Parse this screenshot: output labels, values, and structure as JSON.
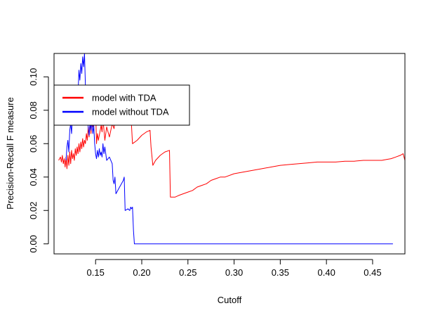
{
  "chart_data": {
    "type": "line",
    "title": "",
    "xlabel": "Cutoff",
    "ylabel": "Precision-Recall F measure",
    "xlim": [
      0.105,
      0.485
    ],
    "ylim": [
      -0.006,
      0.114
    ],
    "x_ticks": [
      0.15,
      0.2,
      0.25,
      0.3,
      0.35,
      0.4,
      0.45
    ],
    "x_tick_labels": [
      "0.15",
      "0.20",
      "0.25",
      "0.30",
      "0.35",
      "0.40",
      "0.45"
    ],
    "y_ticks": [
      0.0,
      0.02,
      0.04,
      0.06,
      0.08,
      0.1
    ],
    "y_tick_labels": [
      "0.00",
      "0.02",
      "0.04",
      "0.06",
      "0.08",
      "0.10"
    ],
    "grid": false,
    "legend": "top-left",
    "colors": {
      "model with TDA": "#ff0000",
      "model without TDA": "#0000ff"
    },
    "series": [
      {
        "name": "model with TDA",
        "color": "#ff0000",
        "x": [
          0.11,
          0.112,
          0.113,
          0.114,
          0.115,
          0.116,
          0.117,
          0.118,
          0.119,
          0.12,
          0.121,
          0.122,
          0.123,
          0.124,
          0.125,
          0.126,
          0.127,
          0.128,
          0.129,
          0.13,
          0.131,
          0.132,
          0.133,
          0.134,
          0.135,
          0.136,
          0.137,
          0.138,
          0.139,
          0.14,
          0.141,
          0.142,
          0.143,
          0.144,
          0.145,
          0.146,
          0.147,
          0.148,
          0.15,
          0.151,
          0.152,
          0.153,
          0.154,
          0.155,
          0.156,
          0.157,
          0.158,
          0.16,
          0.162,
          0.165,
          0.168,
          0.17,
          0.172,
          0.175,
          0.178,
          0.18,
          0.183,
          0.185,
          0.187,
          0.188,
          0.189,
          0.19,
          0.195,
          0.2,
          0.205,
          0.209,
          0.21,
          0.212,
          0.215,
          0.22,
          0.225,
          0.23,
          0.231,
          0.232,
          0.236,
          0.24,
          0.245,
          0.25,
          0.255,
          0.26,
          0.265,
          0.27,
          0.275,
          0.28,
          0.285,
          0.29,
          0.3,
          0.31,
          0.32,
          0.33,
          0.34,
          0.35,
          0.36,
          0.37,
          0.38,
          0.39,
          0.4,
          0.41,
          0.42,
          0.43,
          0.44,
          0.45,
          0.46,
          0.465,
          0.47,
          0.475,
          0.48,
          0.483,
          0.485
        ],
        "y": [
          0.05,
          0.052,
          0.049,
          0.053,
          0.048,
          0.051,
          0.046,
          0.052,
          0.045,
          0.053,
          0.047,
          0.055,
          0.048,
          0.056,
          0.051,
          0.054,
          0.05,
          0.057,
          0.053,
          0.058,
          0.054,
          0.06,
          0.055,
          0.061,
          0.057,
          0.063,
          0.058,
          0.062,
          0.06,
          0.066,
          0.062,
          0.07,
          0.064,
          0.073,
          0.066,
          0.075,
          0.07,
          0.08,
          0.082,
          0.06,
          0.066,
          0.062,
          0.065,
          0.068,
          0.071,
          0.067,
          0.075,
          0.062,
          0.07,
          0.064,
          0.072,
          0.069,
          0.078,
          0.074,
          0.08,
          0.077,
          0.083,
          0.076,
          0.082,
          0.078,
          0.07,
          0.06,
          0.062,
          0.065,
          0.067,
          0.068,
          0.058,
          0.047,
          0.05,
          0.053,
          0.055,
          0.056,
          0.028,
          0.028,
          0.028,
          0.029,
          0.03,
          0.031,
          0.032,
          0.034,
          0.035,
          0.036,
          0.038,
          0.039,
          0.04,
          0.04,
          0.042,
          0.043,
          0.044,
          0.045,
          0.046,
          0.047,
          0.0475,
          0.048,
          0.0485,
          0.049,
          0.049,
          0.049,
          0.0495,
          0.0495,
          0.05,
          0.05,
          0.05,
          0.0505,
          0.051,
          0.052,
          0.053,
          0.054,
          0.05
        ]
      },
      {
        "name": "model without TDA",
        "color": "#0000ff",
        "x": [
          0.118,
          0.119,
          0.12,
          0.121,
          0.122,
          0.123,
          0.124,
          0.125,
          0.126,
          0.127,
          0.128,
          0.129,
          0.13,
          0.131,
          0.132,
          0.133,
          0.134,
          0.135,
          0.136,
          0.137,
          0.138,
          0.139,
          0.14,
          0.141,
          0.142,
          0.143,
          0.144,
          0.145,
          0.146,
          0.147,
          0.148,
          0.149,
          0.15,
          0.151,
          0.152,
          0.153,
          0.154,
          0.155,
          0.156,
          0.157,
          0.158,
          0.159,
          0.16,
          0.162,
          0.165,
          0.168,
          0.169,
          0.17,
          0.171,
          0.172,
          0.174,
          0.176,
          0.178,
          0.18,
          0.181,
          0.182,
          0.185,
          0.187,
          0.188,
          0.189,
          0.19,
          0.191,
          0.192,
          0.2,
          0.25,
          0.3,
          0.35,
          0.4,
          0.45,
          0.472
        ],
        "y": [
          0.05,
          0.058,
          0.062,
          0.055,
          0.068,
          0.072,
          0.066,
          0.078,
          0.082,
          0.074,
          0.088,
          0.084,
          0.095,
          0.09,
          0.104,
          0.098,
          0.108,
          0.102,
          0.112,
          0.106,
          0.114,
          0.095,
          0.08,
          0.075,
          0.07,
          0.065,
          0.073,
          0.068,
          0.074,
          0.066,
          0.071,
          0.06,
          0.054,
          0.051,
          0.056,
          0.052,
          0.057,
          0.053,
          0.055,
          0.052,
          0.06,
          0.054,
          0.058,
          0.05,
          0.052,
          0.048,
          0.038,
          0.036,
          0.04,
          0.03,
          0.032,
          0.034,
          0.036,
          0.038,
          0.04,
          0.02,
          0.021,
          0.02,
          0.022,
          0.021,
          0.022,
          0.008,
          0.0,
          0.0,
          0.0,
          0.0,
          0.0,
          0.0,
          0.0,
          0.0
        ]
      }
    ]
  }
}
